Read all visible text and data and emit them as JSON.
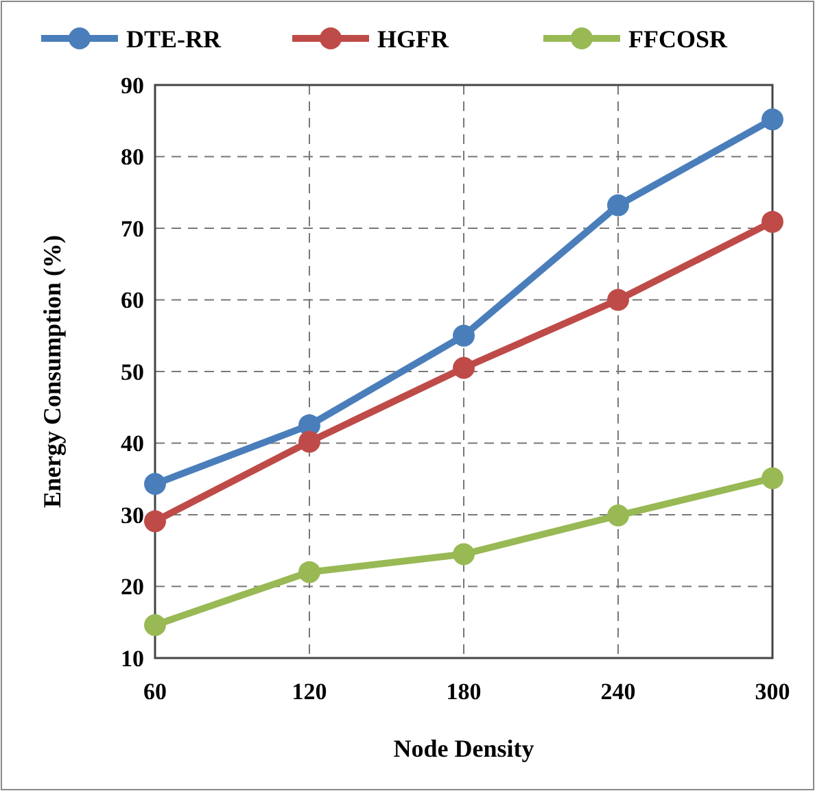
{
  "chart_data": {
    "type": "line",
    "xlabel": "Node Density",
    "ylabel": "Energy Consumption (%)",
    "x": [
      60,
      120,
      180,
      240,
      300
    ],
    "xlim": [
      60,
      300
    ],
    "xticks": [
      60,
      120,
      180,
      240,
      300
    ],
    "ylim": [
      10,
      90
    ],
    "yticks": [
      10,
      20,
      30,
      40,
      50,
      60,
      70,
      80,
      90
    ],
    "grid": true,
    "legend": "top",
    "marker": "circle",
    "line_style": "solid",
    "series": [
      {
        "name": "DTE-RR",
        "color": "#4a7ebb",
        "values": [
          34.3,
          42.5,
          55,
          73.2,
          85.2
        ]
      },
      {
        "name": "HGFR",
        "color": "#be4b48",
        "values": [
          29.1,
          40.2,
          50.5,
          60,
          70.9
        ]
      },
      {
        "name": "FFCOSR",
        "color": "#98b954",
        "values": [
          14.6,
          22,
          24.5,
          29.9,
          35.1
        ]
      }
    ]
  }
}
